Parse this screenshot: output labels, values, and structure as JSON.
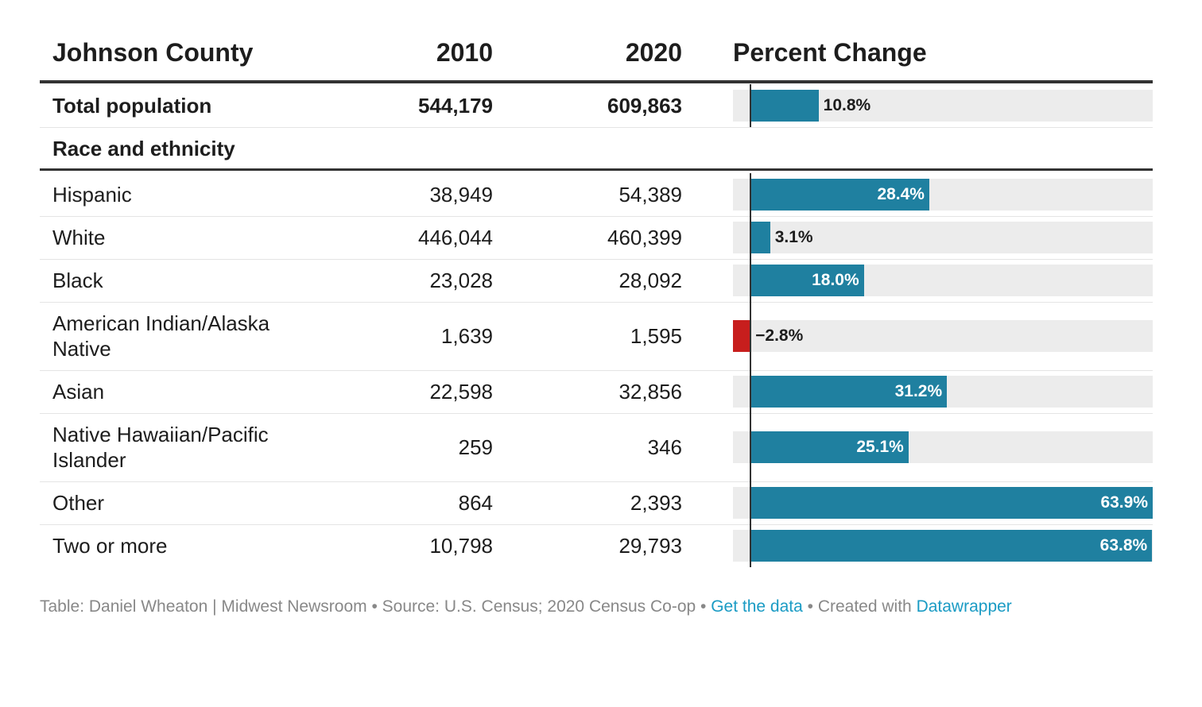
{
  "header": {
    "name": "Johnson County",
    "col2010": "2010",
    "col2020": "2020",
    "colPct": "Percent Change"
  },
  "section_label": "Race and ethnicity",
  "colors": {
    "positive": "#1f80a0",
    "negative": "#c71e1d",
    "track": "#ececec",
    "link": "#1a9bc4"
  },
  "chart_data": {
    "type": "table",
    "columns": [
      "Johnson County",
      "2010",
      "2020",
      "Percent Change"
    ],
    "xlim": [
      -2.8,
      63.9
    ],
    "rows": [
      {
        "label": "Total population",
        "v2010": "544,179",
        "v2020": "609,863",
        "pct": 10.8,
        "pct_label": "10.8%",
        "bold": true
      },
      {
        "label": "Hispanic",
        "v2010": "38,949",
        "v2020": "54,389",
        "pct": 28.4,
        "pct_label": "28.4%"
      },
      {
        "label": "White",
        "v2010": "446,044",
        "v2020": "460,399",
        "pct": 3.1,
        "pct_label": "3.1%"
      },
      {
        "label": "Black",
        "v2010": "23,028",
        "v2020": "28,092",
        "pct": 18.0,
        "pct_label": "18.0%"
      },
      {
        "label": "American Indian/Alaska Native",
        "label_lines": [
          "American Indian/Alaska",
          "Native"
        ],
        "v2010": "1,639",
        "v2020": "1,595",
        "pct": -2.8,
        "pct_label": "−2.8%"
      },
      {
        "label": "Asian",
        "v2010": "22,598",
        "v2020": "32,856",
        "pct": 31.2,
        "pct_label": "31.2%"
      },
      {
        "label": "Native Hawaiian/Pacific Islander",
        "label_lines": [
          "Native Hawaiian/Pacific",
          "Islander"
        ],
        "v2010": "259",
        "v2020": "346",
        "pct": 25.1,
        "pct_label": "25.1%"
      },
      {
        "label": "Other",
        "v2010": "864",
        "v2020": "2,393",
        "pct": 63.9,
        "pct_label": "63.9%"
      },
      {
        "label": "Two or more",
        "v2010": "10,798",
        "v2020": "29,793",
        "pct": 63.8,
        "pct_label": "63.8%"
      }
    ]
  },
  "footer": {
    "credit": "Table: Daniel Wheaton | Midwest Newsroom • Source: U.S. Census; 2020 Census Co-op • ",
    "get_data": "Get the data",
    "middle": " • Created with ",
    "tool": "Datawrapper"
  }
}
